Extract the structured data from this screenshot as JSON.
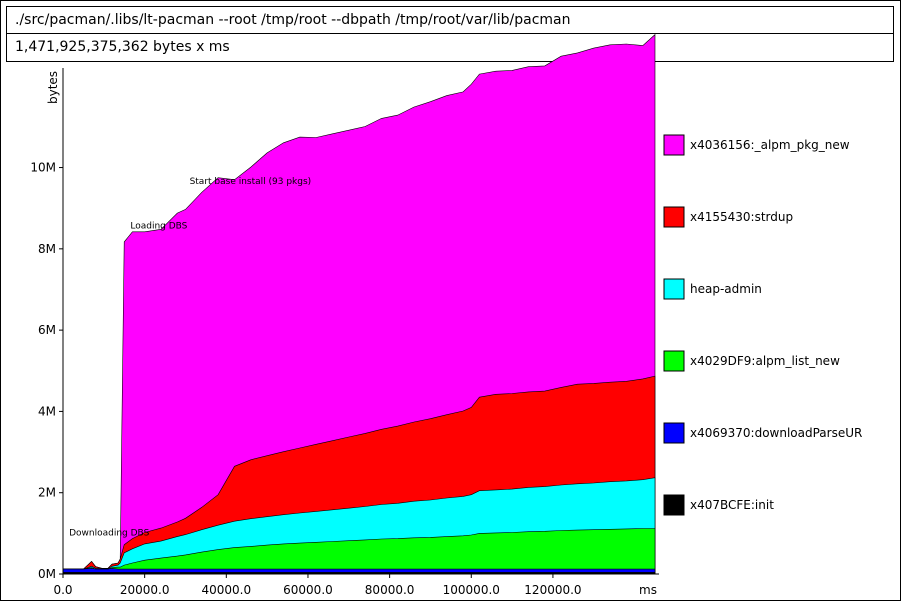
{
  "header": {
    "command": "./src/pacman/.libs/lt-pacman --root /tmp/root --dbpath /tmp/root/var/lib/pacman",
    "total": "1,471,925,375,362 bytes x ms"
  },
  "chart_data": {
    "type": "area",
    "stacked": true,
    "ylabel": "bytes",
    "xlabel": "ms",
    "xlim": [
      0,
      145000
    ],
    "ylim": [
      0,
      12.4
    ],
    "y_unit": "M",
    "x_ticks": [
      0,
      20000,
      40000,
      60000,
      80000,
      100000,
      120000
    ],
    "x_tick_labels": [
      "0.0",
      "20000.0",
      "40000.0",
      "60000.0",
      "80000.0",
      "100000.0",
      "120000.0"
    ],
    "y_ticks": [
      0,
      2,
      4,
      6,
      8,
      10
    ],
    "y_tick_labels": [
      "0M",
      "2M",
      "4M",
      "6M",
      "8M",
      "10M"
    ],
    "x": [
      0,
      5000,
      7000,
      8000,
      9500,
      11000,
      12000,
      13500,
      14000,
      15000,
      17000,
      20000,
      24000,
      28000,
      30000,
      34000,
      38000,
      42000,
      46000,
      50000,
      54000,
      58000,
      62000,
      66000,
      70000,
      74000,
      78000,
      82000,
      86000,
      90000,
      94000,
      98000,
      100000,
      102000,
      106000,
      110000,
      114000,
      118000,
      122000,
      126000,
      130000,
      134000,
      138000,
      142000,
      145000
    ],
    "series": [
      {
        "name": "x407BCFE:init",
        "color": "#000000",
        "values": [
          0.04,
          0.04,
          0.04,
          0.04,
          0.04,
          0.04,
          0.04,
          0.04,
          0.04,
          0.04,
          0.04,
          0.04,
          0.04,
          0.04,
          0.04,
          0.04,
          0.04,
          0.04,
          0.04,
          0.04,
          0.04,
          0.04,
          0.04,
          0.04,
          0.04,
          0.04,
          0.04,
          0.04,
          0.04,
          0.04,
          0.04,
          0.04,
          0.04,
          0.04,
          0.04,
          0.04,
          0.04,
          0.04,
          0.04,
          0.04,
          0.04,
          0.04,
          0.04,
          0.04,
          0.04
        ]
      },
      {
        "name": "x4069370:downloadParseUR",
        "color": "#0000ff",
        "values": [
          0.08,
          0.08,
          0.1,
          0.08,
          0.08,
          0.08,
          0.1,
          0.08,
          0.08,
          0.08,
          0.08,
          0.08,
          0.08,
          0.08,
          0.08,
          0.08,
          0.08,
          0.08,
          0.08,
          0.08,
          0.08,
          0.08,
          0.08,
          0.08,
          0.08,
          0.08,
          0.08,
          0.08,
          0.08,
          0.08,
          0.08,
          0.08,
          0.08,
          0.08,
          0.08,
          0.08,
          0.08,
          0.08,
          0.08,
          0.08,
          0.08,
          0.08,
          0.08,
          0.08,
          0.08
        ]
      },
      {
        "name": "x4029DF9:alpm_list_new",
        "color": "#00ff00",
        "values": [
          0,
          0,
          0.02,
          0,
          0,
          0,
          0.02,
          0.05,
          0.05,
          0.1,
          0.15,
          0.22,
          0.27,
          0.32,
          0.35,
          0.42,
          0.48,
          0.53,
          0.56,
          0.59,
          0.62,
          0.64,
          0.66,
          0.68,
          0.7,
          0.72,
          0.74,
          0.75,
          0.77,
          0.78,
          0.8,
          0.82,
          0.84,
          0.88,
          0.89,
          0.9,
          0.92,
          0.93,
          0.95,
          0.96,
          0.97,
          0.98,
          0.99,
          1.0,
          1.0
        ]
      },
      {
        "name": "heap-admin",
        "color": "#00ffff",
        "values": [
          0,
          0,
          0.03,
          0.02,
          0.01,
          0.01,
          0.03,
          0.05,
          0.1,
          0.3,
          0.35,
          0.4,
          0.42,
          0.48,
          0.5,
          0.55,
          0.6,
          0.65,
          0.68,
          0.7,
          0.72,
          0.74,
          0.76,
          0.78,
          0.8,
          0.82,
          0.85,
          0.87,
          0.9,
          0.92,
          0.95,
          0.97,
          0.99,
          1.05,
          1.06,
          1.07,
          1.09,
          1.1,
          1.12,
          1.14,
          1.15,
          1.17,
          1.18,
          1.2,
          1.25
        ]
      },
      {
        "name": "x4155430:strdup",
        "color": "#ff0000",
        "values": [
          0,
          0,
          0.12,
          0.04,
          0.01,
          0.01,
          0.05,
          0.05,
          0.1,
          0.2,
          0.25,
          0.28,
          0.32,
          0.36,
          0.4,
          0.55,
          0.75,
          1.35,
          1.45,
          1.5,
          1.55,
          1.6,
          1.65,
          1.7,
          1.75,
          1.8,
          1.85,
          1.9,
          1.95,
          2.0,
          2.05,
          2.1,
          2.15,
          2.3,
          2.35,
          2.35,
          2.35,
          2.35,
          2.4,
          2.45,
          2.45,
          2.45,
          2.45,
          2.48,
          2.5
        ]
      },
      {
        "name": "x4036156:_alpm_pkg_new",
        "color": "#ff00ff",
        "values": [
          0,
          0,
          0,
          0,
          0,
          0,
          0,
          0,
          0,
          7.45,
          7.55,
          7.4,
          7.35,
          7.6,
          7.6,
          7.75,
          7.8,
          7.05,
          7.2,
          7.45,
          7.6,
          7.65,
          7.55,
          7.55,
          7.55,
          7.55,
          7.65,
          7.65,
          7.75,
          7.8,
          7.85,
          7.85,
          7.95,
          7.95,
          7.95,
          7.95,
          8.0,
          8.0,
          8.15,
          8.15,
          8.25,
          8.3,
          8.3,
          8.2,
          8.4
        ]
      }
    ],
    "annotations": [
      {
        "text": "Downloading DBS",
        "x": 1500,
        "y": 0.95
      },
      {
        "text": "Loading DBS",
        "x": 16500,
        "y": 8.5
      },
      {
        "text": "Start base install (93 pkgs)",
        "x": 31000,
        "y": 9.6
      }
    ]
  }
}
